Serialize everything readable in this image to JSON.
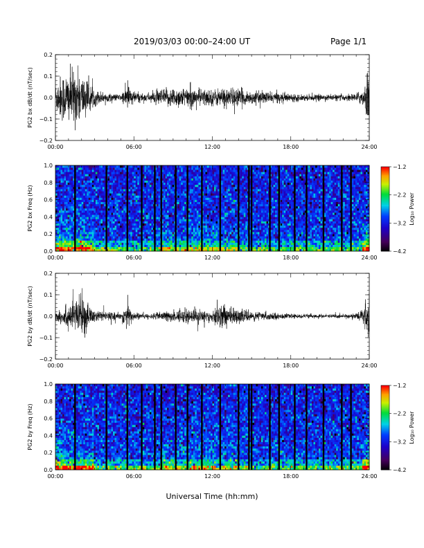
{
  "header": {
    "title": "2019/03/03  00:00–24:00 UT",
    "page": "Page 1/1"
  },
  "xlabel_common": "Universal Time (hh:mm)",
  "x_ticks": [
    "00:00",
    "06:00",
    "12:00",
    "18:00",
    "24:00"
  ],
  "colors": {
    "trace": "#000000",
    "frame": "#000000"
  },
  "chart_data": [
    {
      "type": "line",
      "ylabel": "PG2 bx dB/dt (nT/sec)",
      "xlim": [
        0,
        24
      ],
      "ylim": [
        -0.2,
        0.2
      ],
      "y_ticks": [
        -0.2,
        -0.1,
        0.0,
        0.1,
        0.2
      ],
      "y_tick_labels": [
        "−0.2",
        "−0.1",
        "0.0",
        "0.1",
        "0.2"
      ],
      "series": [
        {
          "values_hours": [
            0,
            24
          ],
          "envelope": [
            [
              0.0,
              0.07
            ],
            [
              0.5,
              0.12
            ],
            [
              1.0,
              0.13
            ],
            [
              1.5,
              0.14
            ],
            [
              2.0,
              0.12
            ],
            [
              2.5,
              0.08
            ],
            [
              3.0,
              0.04
            ],
            [
              4.0,
              0.02
            ],
            [
              5.0,
              0.015
            ],
            [
              5.6,
              0.07
            ],
            [
              6.0,
              0.03
            ],
            [
              7.0,
              0.02
            ],
            [
              8.0,
              0.04
            ],
            [
              9.0,
              0.05
            ],
            [
              10.0,
              0.05
            ],
            [
              11.0,
              0.045
            ],
            [
              12.0,
              0.04
            ],
            [
              13.0,
              0.05
            ],
            [
              14.0,
              0.045
            ],
            [
              15.0,
              0.03
            ],
            [
              16.0,
              0.03
            ],
            [
              17.0,
              0.025
            ],
            [
              18.0,
              0.02
            ],
            [
              19.0,
              0.015
            ],
            [
              20.0,
              0.015
            ],
            [
              21.0,
              0.015
            ],
            [
              22.0,
              0.015
            ],
            [
              23.0,
              0.02
            ],
            [
              23.6,
              0.05
            ],
            [
              24.0,
              0.17
            ]
          ]
        }
      ]
    },
    {
      "type": "heatmap",
      "ylabel": "PG2 bx Freq (Hz)",
      "xlim": [
        0,
        24
      ],
      "ylim": [
        0.0,
        1.0
      ],
      "y_ticks": [
        0.0,
        0.2,
        0.4,
        0.6,
        0.8,
        1.0
      ],
      "y_tick_labels": [
        "0.0",
        "0.2",
        "0.4",
        "0.6",
        "0.8",
        "1.0"
      ],
      "colorbar": {
        "label": "Log₁₀ Power",
        "ticks": [
          -1.2,
          -2.2,
          -3.2,
          -4.2
        ],
        "tick_labels": [
          "−1.2",
          "−2.2",
          "−3.2",
          "−4.2"
        ],
        "range": [
          -4.2,
          -1.2
        ]
      },
      "data_gaps_hours": [
        1.5,
        3.9,
        5.5,
        6.6,
        7.6,
        8.1,
        9.2,
        10.1,
        11.2,
        12.6,
        14.0,
        14.8,
        15.0,
        16.4,
        17.1,
        18.3,
        19.2,
        20.5,
        21.9,
        22.6
      ]
    },
    {
      "type": "line",
      "ylabel": "PG2 by dB/dt (nT/sec)",
      "xlim": [
        0,
        24
      ],
      "ylim": [
        -0.2,
        0.2
      ],
      "y_ticks": [
        -0.2,
        -0.1,
        0.0,
        0.1,
        0.2
      ],
      "y_tick_labels": [
        "−0.2",
        "−0.1",
        "0.0",
        "0.1",
        "0.2"
      ],
      "series": [
        {
          "values_hours": [
            0,
            24
          ],
          "envelope": [
            [
              0.0,
              0.03
            ],
            [
              0.5,
              0.04
            ],
            [
              1.0,
              0.06
            ],
            [
              1.5,
              0.08
            ],
            [
              2.0,
              0.1
            ],
            [
              2.5,
              0.06
            ],
            [
              3.0,
              0.03
            ],
            [
              4.0,
              0.02
            ],
            [
              5.0,
              0.015
            ],
            [
              5.5,
              0.07
            ],
            [
              6.0,
              0.02
            ],
            [
              7.0,
              0.01
            ],
            [
              8.0,
              0.02
            ],
            [
              9.0,
              0.03
            ],
            [
              10.0,
              0.035
            ],
            [
              11.0,
              0.03
            ],
            [
              12.0,
              0.03
            ],
            [
              12.8,
              0.07
            ],
            [
              13.5,
              0.04
            ],
            [
              14.0,
              0.03
            ],
            [
              15.0,
              0.025
            ],
            [
              16.0,
              0.02
            ],
            [
              17.0,
              0.015
            ],
            [
              18.0,
              0.01
            ],
            [
              19.0,
              0.01
            ],
            [
              20.0,
              0.01
            ],
            [
              21.0,
              0.01
            ],
            [
              22.0,
              0.01
            ],
            [
              23.0,
              0.015
            ],
            [
              23.6,
              0.04
            ],
            [
              24.0,
              0.15
            ]
          ]
        }
      ]
    },
    {
      "type": "heatmap",
      "ylabel": "PG2 by Freq (Hz)",
      "xlim": [
        0,
        24
      ],
      "ylim": [
        0.0,
        1.0
      ],
      "y_ticks": [
        0.0,
        0.2,
        0.4,
        0.6,
        0.8,
        1.0
      ],
      "y_tick_labels": [
        "0.0",
        "0.2",
        "0.4",
        "0.6",
        "0.8",
        "1.0"
      ],
      "colorbar": {
        "label": "Log₁₀ Power",
        "ticks": [
          -1.2,
          -2.2,
          -3.2,
          -4.2
        ],
        "tick_labels": [
          "−1.2",
          "−2.2",
          "−3.2",
          "−4.2"
        ],
        "range": [
          -4.2,
          -1.2
        ]
      },
      "data_gaps_hours": [
        1.5,
        3.9,
        5.5,
        6.6,
        7.6,
        8.1,
        9.2,
        10.1,
        11.2,
        12.6,
        14.0,
        14.8,
        15.0,
        16.4,
        17.1,
        18.3,
        19.2,
        20.5,
        21.9,
        22.6
      ]
    }
  ]
}
